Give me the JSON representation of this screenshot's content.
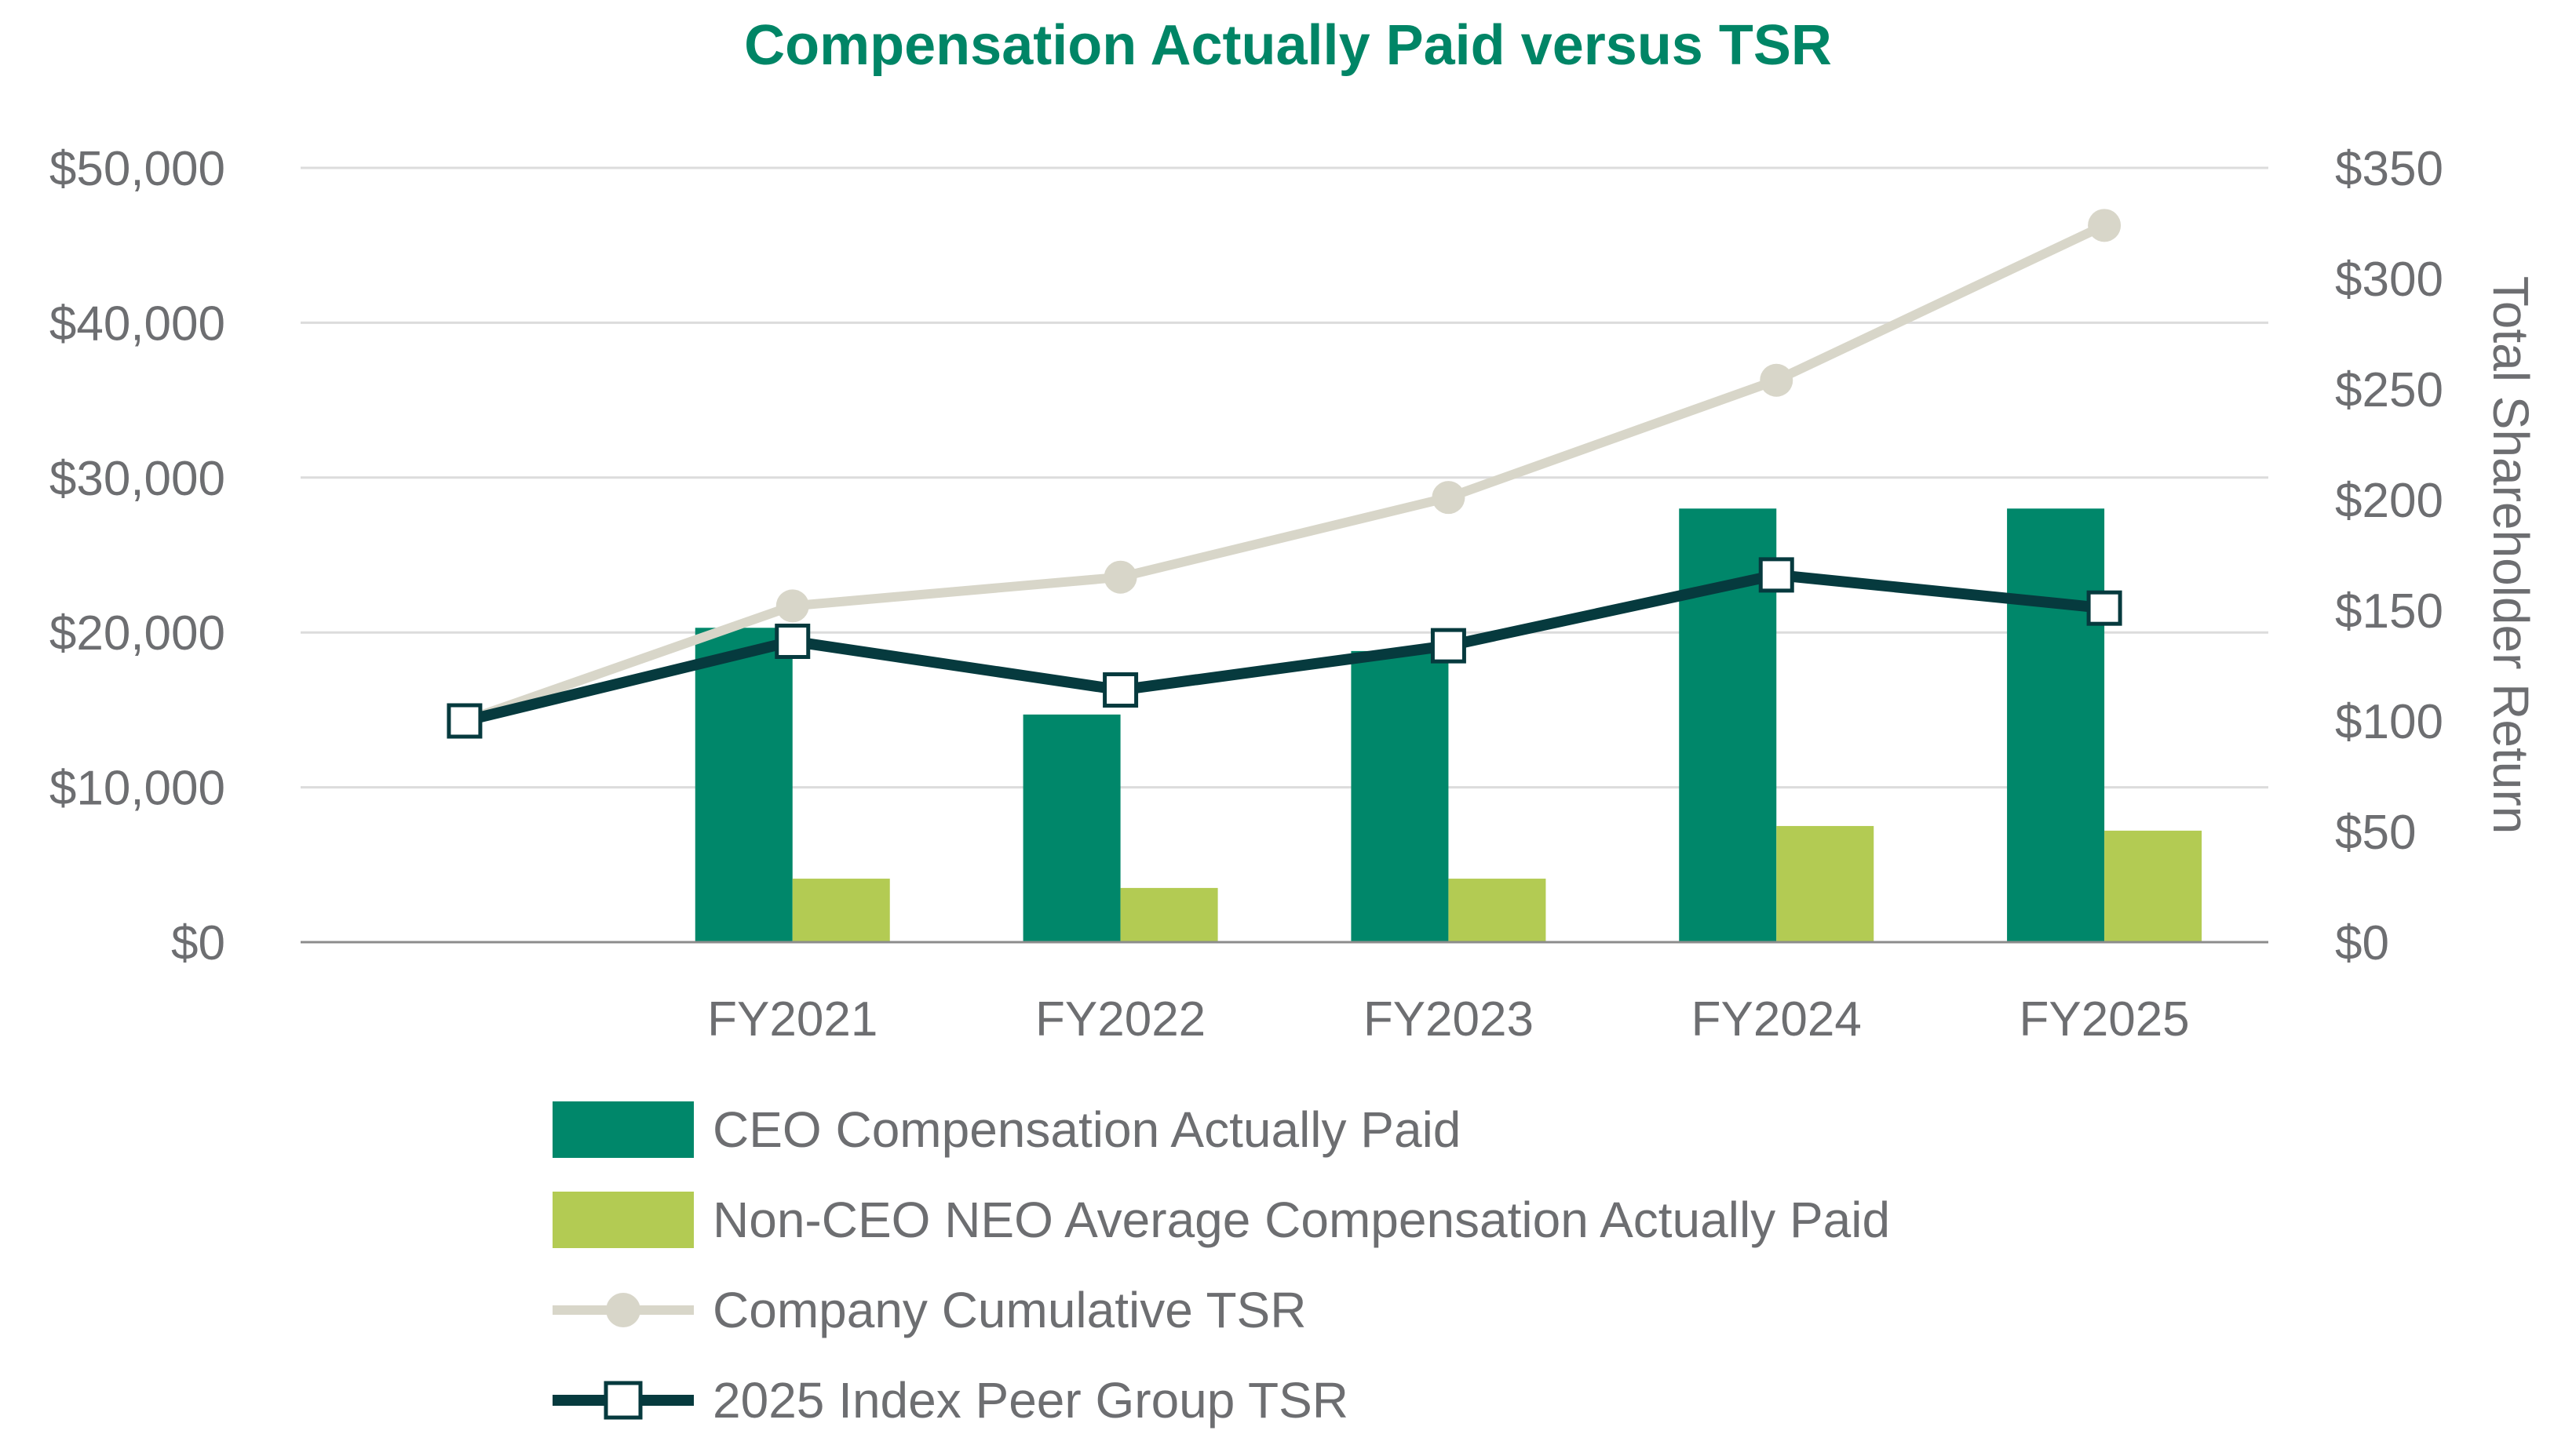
{
  "chart_data": {
    "type": "bar",
    "title": "Compensation Actually Paid versus TSR",
    "categories": [
      "",
      "FY2021",
      "FY2022",
      "FY2023",
      "FY2024",
      "FY2025"
    ],
    "y_left": {
      "label": "",
      "ylim": [
        0,
        50000
      ],
      "ticks": [
        0,
        10000,
        20000,
        30000,
        40000,
        50000
      ],
      "tick_labels": [
        "$0",
        "$10,000",
        "$20,000",
        "$30,000",
        "$40,000",
        "$50,000"
      ]
    },
    "y_right": {
      "label": "Total Shareholder Return",
      "ylim": [
        0,
        350
      ],
      "ticks": [
        0,
        50,
        100,
        150,
        200,
        250,
        300,
        350
      ],
      "tick_labels": [
        "$0",
        "$50",
        "$100",
        "$150",
        "$200",
        "$250",
        "$300",
        "$350"
      ]
    },
    "grid": true,
    "legend_position": "bottom",
    "series": [
      {
        "name": "CEO Compensation Actually Paid",
        "type": "bar",
        "axis": "left",
        "color": "#00876a",
        "values": [
          null,
          20300,
          14700,
          18800,
          28000,
          28000
        ]
      },
      {
        "name": "Non-CEO NEO Average Compensation Actually Paid",
        "type": "bar",
        "axis": "left",
        "color": "#b3cb53",
        "values": [
          null,
          4100,
          3500,
          4100,
          7500,
          7200
        ]
      },
      {
        "name": "Company Cumulative TSR",
        "type": "line",
        "axis": "right",
        "color": "#d8d6c9",
        "marker": "circle",
        "values": [
          100,
          152,
          165,
          201,
          254,
          324
        ]
      },
      {
        "name": "2025 Index Peer Group TSR",
        "type": "line",
        "axis": "right",
        "color": "#063a3e",
        "marker": "square",
        "values": [
          100,
          136,
          114,
          134,
          166,
          151
        ]
      }
    ]
  }
}
